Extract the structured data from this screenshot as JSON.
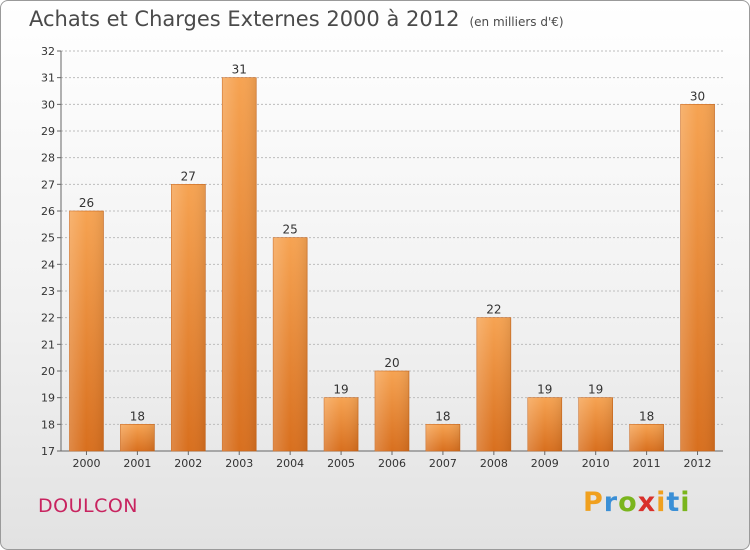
{
  "header": {
    "title": "Achats et Charges Externes 2000 à 2012",
    "subtitle": "(en milliers d'€)"
  },
  "footer": {
    "commune": "DOULCON",
    "logo_letters": [
      "P",
      "r",
      "o",
      "x",
      "i",
      "t",
      "i"
    ],
    "logo_colors": [
      "#f0a01e",
      "#3a8fd6",
      "#7ab51d",
      "#d9302a",
      "#f0a01e",
      "#3a8fd6",
      "#7ab51d"
    ]
  },
  "colors": {
    "bar_top": "#f6a352",
    "bar_bottom": "#d86f1e",
    "grid": "#bdbdbd",
    "text": "#333333"
  },
  "chart_data": {
    "type": "bar",
    "title": "Achats et Charges Externes 2000 à 2012",
    "subtitle": "(en milliers d'€)",
    "categories": [
      "2000",
      "2001",
      "2002",
      "2003",
      "2004",
      "2005",
      "2006",
      "2007",
      "2008",
      "2009",
      "2010",
      "2011",
      "2012"
    ],
    "values": [
      26,
      18,
      27,
      31,
      25,
      19,
      20,
      18,
      22,
      19,
      19,
      18,
      30
    ],
    "ylim": [
      17,
      32
    ],
    "yticks": [
      17,
      18,
      19,
      20,
      21,
      22,
      23,
      24,
      25,
      26,
      27,
      28,
      29,
      30,
      31,
      32
    ],
    "grid": true
  }
}
